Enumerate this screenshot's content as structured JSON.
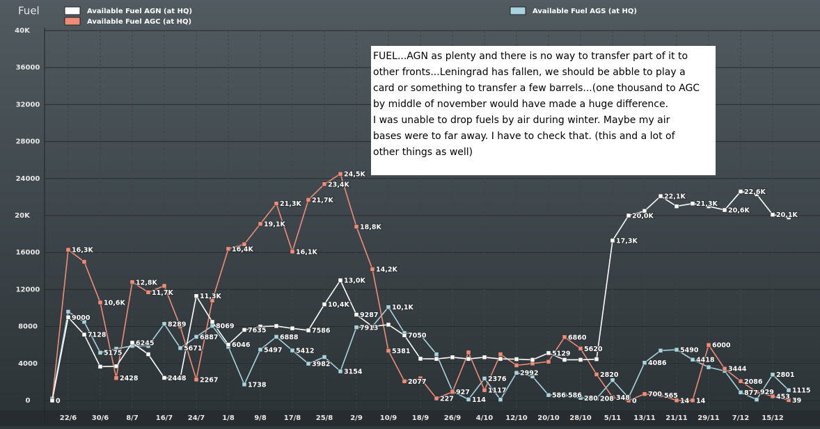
{
  "chart_data": {
    "type": "line",
    "title": "Fuel",
    "categories": [
      null,
      "22/6",
      null,
      "30/6",
      null,
      "8/7",
      null,
      "16/7",
      null,
      "24/7",
      null,
      "1/8",
      null,
      "9/8",
      null,
      "17/8",
      null,
      "25/8",
      null,
      "2/9",
      null,
      "10/9",
      null,
      "18/9",
      null,
      "26/9",
      null,
      "4/10",
      null,
      "12/10",
      null,
      "20/10",
      null,
      "28/10",
      null,
      "5/11",
      null,
      "13/11",
      null,
      "21/11",
      null,
      "29/11",
      null,
      "7/12",
      null,
      "15/12",
      null
    ],
    "series": [
      {
        "name": "Available Fuel AGN (at HQ)",
        "color": "#ffffff",
        "values": [
          0,
          9000,
          7128,
          3660,
          3700,
          6245,
          5000,
          2448,
          2448,
          11300,
          8500,
          6046,
          7635,
          8000,
          8050,
          7800,
          7586,
          10400,
          13000,
          9287,
          8000,
          8198,
          7050,
          4517,
          4500,
          4674,
          4500,
          4674,
          4500,
          4471,
          4400,
          5129,
          4400,
          4400,
          4470,
          17300,
          20000,
          20500,
          22100,
          21000,
          21300,
          21000,
          20600,
          22600,
          22300,
          20100,
          19800
        ],
        "value_labels": [
          "0",
          "9000",
          "7128",
          null,
          null,
          "6245",
          null,
          "2448",
          null,
          "11,3K",
          null,
          "6046",
          "7635",
          null,
          null,
          null,
          "7586",
          "10,4K",
          "13,0K",
          "9287",
          null,
          null,
          "7050",
          null,
          null,
          null,
          null,
          null,
          null,
          null,
          null,
          "5129",
          null,
          null,
          null,
          "17,3K",
          "20,0K",
          null,
          "22,1K",
          null,
          "21,3K",
          null,
          "20,6K",
          "22,6K",
          null,
          "20,1K",
          null
        ]
      },
      {
        "name": "Available Fuel AGC (at HQ)",
        "color": "#f08c7a",
        "values": [
          0,
          16300,
          15000,
          10600,
          2428,
          12800,
          11700,
          12400,
          8000,
          2267,
          10800,
          16400,
          16900,
          19100,
          21300,
          16100,
          21700,
          23400,
          24500,
          18800,
          14200,
          5381,
          2077,
          2400,
          227,
          927,
          5200,
          1117,
          5000,
          3800,
          4000,
          4200,
          6860,
          5620,
          2820,
          348,
          0,
          700,
          565,
          14,
          14,
          6000,
          3444,
          2086,
          929,
          453,
          39
        ],
        "value_labels": [
          null,
          "16,3K",
          null,
          "10,6K",
          "2428",
          "12,8K",
          "11,7K",
          null,
          null,
          "2267",
          null,
          "16,4K",
          null,
          "19,1K",
          "21,3K",
          "16,1K",
          "21,7K",
          "23,4K",
          "24,5K",
          "18,8K",
          "14,2K",
          "5381",
          "2077",
          null,
          "227",
          "927",
          null,
          "1117",
          null,
          null,
          null,
          null,
          "6860",
          "5620",
          "2820",
          "348",
          "0",
          "700",
          "565",
          "14",
          "14",
          "6000",
          "3444",
          "2086",
          "929",
          "453",
          "39"
        ]
      },
      {
        "name": "Available Fuel AGS (at HQ)",
        "color": "#a8d4e0",
        "values": [
          200,
          9600,
          8500,
          5175,
          5600,
          5900,
          5900,
          8289,
          5671,
          6887,
          8069,
          5800,
          1738,
          5497,
          6888,
          5412,
          3982,
          4700,
          3154,
          7913,
          8000,
          10100,
          7300,
          7100,
          5000,
          1000,
          114,
          2376,
          100,
          2992,
          2600,
          586,
          586,
          280,
          208,
          2200,
          300,
          4086,
          5400,
          5490,
          4418,
          3600,
          3200,
          877,
          100,
          2801,
          1115
        ],
        "value_labels": [
          null,
          null,
          null,
          "5175",
          null,
          null,
          null,
          "8289",
          "5671",
          "6887",
          "8069",
          null,
          "1738",
          "5497",
          "6888",
          "5412",
          "3982",
          null,
          "3154",
          "7913",
          null,
          "10,1K",
          null,
          null,
          null,
          null,
          "114",
          "2376",
          null,
          "2992",
          null,
          "586",
          "586",
          "280",
          "208",
          null,
          null,
          "4086",
          null,
          "5490",
          "4418",
          null,
          null,
          "877",
          null,
          "2801",
          "1115"
        ]
      }
    ],
    "ylim": [
      0,
      40000
    ],
    "yticks": [
      0,
      4000,
      8000,
      12000,
      16000,
      {
        "value": 20000,
        "label": "20K"
      },
      24000,
      28000,
      32000,
      36000,
      {
        "value": 40000,
        "label": "40K"
      }
    ],
    "grid": true,
    "annotation": [
      "FUEL...AGN as plenty and there is no way to transfer part of it to",
      "other fronts...Leningrad has fallen, we should be abble to play a",
      "card or something to transfer a few barrels...(one thousand to AGC",
      "by middle of november would have made a huge difference.",
      "I was unable to drop fuels by air during winter. Maybe my air",
      "bases were to far away. I have to check that. (this and a lot of",
      "other things as well)"
    ]
  }
}
